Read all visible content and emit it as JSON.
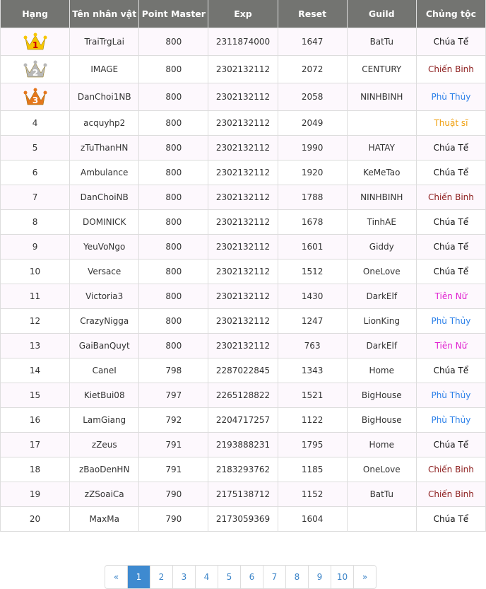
{
  "headers": [
    "Hạng",
    "Tên nhân vật",
    "Point Master",
    "Exp",
    "Reset",
    "Guild",
    "Chủng tộc"
  ],
  "race_colors": {
    "Chúa Tể": "#111111",
    "Chiến Binh": "#8b1a1a",
    "Phù Thủy": "#2a7fe8",
    "Thuật sĩ": "#f0a010",
    "Tiên Nữ": "#e020d0"
  },
  "rows": [
    {
      "rank": "1",
      "rank_icon": "gold-crown-1",
      "name": "TraiTrgLai",
      "pm": "800",
      "exp": "2311874000",
      "reset": "1647",
      "guild": "BatTu",
      "race": "Chúa Tể"
    },
    {
      "rank": "2",
      "rank_icon": "silver-crown-2",
      "name": "IMAGE",
      "pm": "800",
      "exp": "2302132112",
      "reset": "2072",
      "guild": "CENTURY",
      "race": "Chiến Binh"
    },
    {
      "rank": "3",
      "rank_icon": "bronze-crown-3",
      "name": "DanChoi1NB",
      "pm": "800",
      "exp": "2302132112",
      "reset": "2058",
      "guild": "NINHBINH",
      "race": "Phù Thủy"
    },
    {
      "rank": "4",
      "name": "acquyhp2",
      "pm": "800",
      "exp": "2302132112",
      "reset": "2049",
      "guild": "",
      "race": "Thuật sĩ"
    },
    {
      "rank": "5",
      "name": "zTuThanHN",
      "pm": "800",
      "exp": "2302132112",
      "reset": "1990",
      "guild": "HATAY",
      "race": "Chúa Tể"
    },
    {
      "rank": "6",
      "name": "Ambulance",
      "pm": "800",
      "exp": "2302132112",
      "reset": "1920",
      "guild": "KeMeTao",
      "race": "Chúa Tể"
    },
    {
      "rank": "7",
      "name": "DanChoiNB",
      "pm": "800",
      "exp": "2302132112",
      "reset": "1788",
      "guild": "NINHBINH",
      "race": "Chiến Binh"
    },
    {
      "rank": "8",
      "name": "DOMINICK",
      "pm": "800",
      "exp": "2302132112",
      "reset": "1678",
      "guild": "TinhAE",
      "race": "Chúa Tể"
    },
    {
      "rank": "9",
      "name": "YeuVoNgo",
      "pm": "800",
      "exp": "2302132112",
      "reset": "1601",
      "guild": "Giddy",
      "race": "Chúa Tể"
    },
    {
      "rank": "10",
      "name": "Versace",
      "pm": "800",
      "exp": "2302132112",
      "reset": "1512",
      "guild": "OneLove",
      "race": "Chúa Tể"
    },
    {
      "rank": "11",
      "name": "Victoria3",
      "pm": "800",
      "exp": "2302132112",
      "reset": "1430",
      "guild": "DarkElf",
      "race": "Tiên Nữ"
    },
    {
      "rank": "12",
      "name": "CrazyNigga",
      "pm": "800",
      "exp": "2302132112",
      "reset": "1247",
      "guild": "LionKing",
      "race": "Phù Thủy"
    },
    {
      "rank": "13",
      "name": "GaiBanQuyt",
      "pm": "800",
      "exp": "2302132112",
      "reset": "763",
      "guild": "DarkElf",
      "race": "Tiên Nữ"
    },
    {
      "rank": "14",
      "name": "CaneI",
      "pm": "798",
      "exp": "2287022845",
      "reset": "1343",
      "guild": "Home",
      "race": "Chúa Tể"
    },
    {
      "rank": "15",
      "name": "KietBui08",
      "pm": "797",
      "exp": "2265128822",
      "reset": "1521",
      "guild": "BigHouse",
      "race": "Phù Thủy"
    },
    {
      "rank": "16",
      "name": "LamGiang",
      "pm": "792",
      "exp": "2204717257",
      "reset": "1122",
      "guild": "BigHouse",
      "race": "Phù Thủy"
    },
    {
      "rank": "17",
      "name": "zZeus",
      "pm": "791",
      "exp": "2193888231",
      "reset": "1795",
      "guild": "Home",
      "race": "Chúa Tể"
    },
    {
      "rank": "18",
      "name": "zBaoDenHN",
      "pm": "791",
      "exp": "2183293762",
      "reset": "1185",
      "guild": "OneLove",
      "race": "Chiến Binh"
    },
    {
      "rank": "19",
      "name": "zZSoaiCa",
      "pm": "790",
      "exp": "2175138712",
      "reset": "1152",
      "guild": "BatTu",
      "race": "Chiến Binh"
    },
    {
      "rank": "20",
      "name": "MaxMa",
      "pm": "790",
      "exp": "2173059369",
      "reset": "1604",
      "guild": "",
      "race": "Chúa Tể"
    }
  ],
  "pagination": {
    "first": "«",
    "pages": [
      "1",
      "2",
      "3",
      "4",
      "5",
      "6",
      "7",
      "8",
      "9",
      "10"
    ],
    "active": "1",
    "next": "»"
  }
}
